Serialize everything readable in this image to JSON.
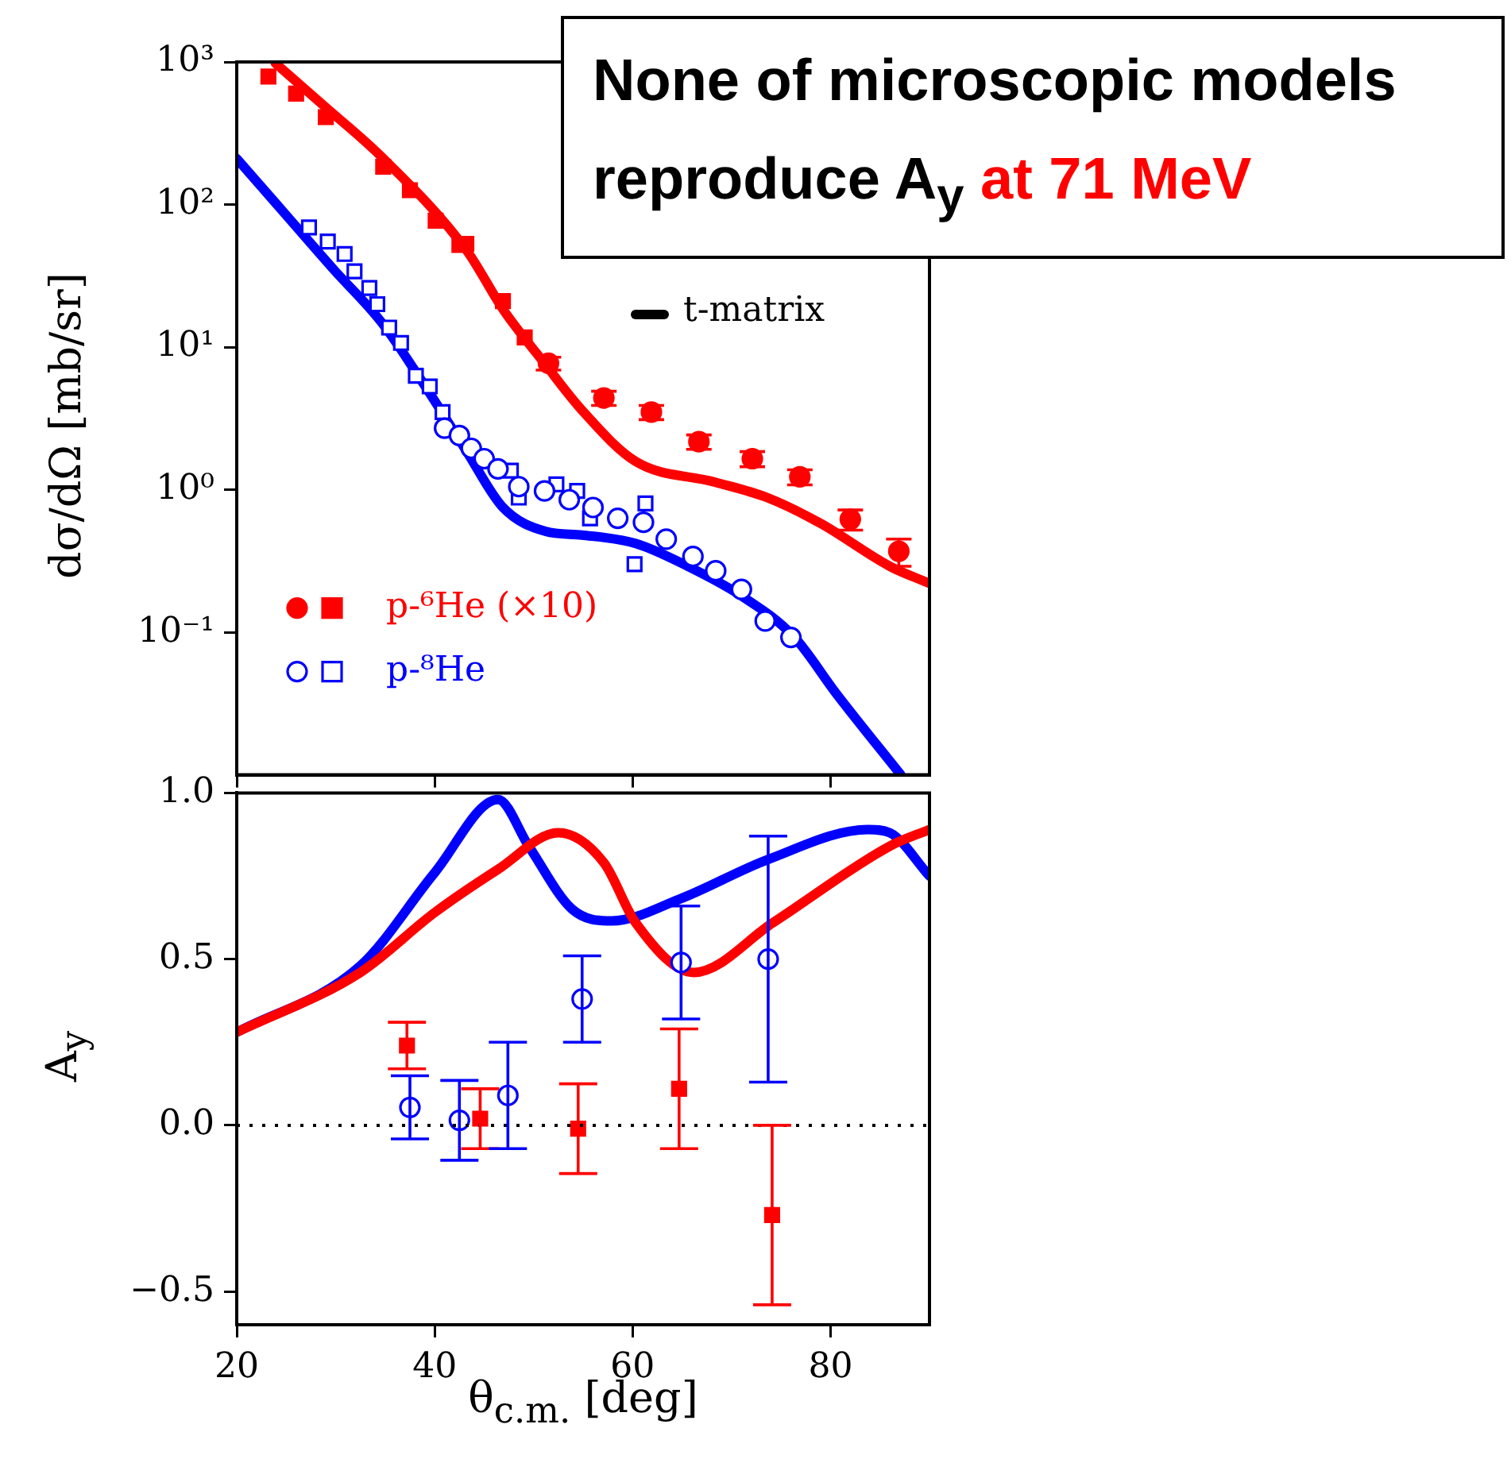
{
  "chart_data": [
    {
      "type": "scatter",
      "ylabel": "dσ/dΩ [mb/sr]",
      "log": "y",
      "xlim": [
        20,
        90
      ],
      "xticks": [
        {
          "value": 20,
          "label": null
        },
        {
          "value": 40,
          "label": null
        },
        {
          "value": 60,
          "label": null
        },
        {
          "value": 80,
          "label": null
        }
      ],
      "ylim": [
        0.01,
        1000
      ],
      "yticks": [
        {
          "value": 1000,
          "label": "10³"
        },
        {
          "value": 100,
          "label": "10²"
        },
        {
          "value": 10,
          "label": "10¹"
        },
        {
          "value": 1,
          "label": "10⁰"
        },
        {
          "value": 0.1,
          "label": "10⁻¹"
        }
      ],
      "tick_labels": "y",
      "grid": false,
      "legend": "bottom left",
      "annotations": [
        "None of microscopic models reproduce A$_{y}$",
        "at 71 MeV",
        "t-matrix"
      ],
      "series": [
        {
          "name": "p-⁶He (×10)",
          "type": "scatter",
          "marker": "circle",
          "color": "#ff0000",
          "x": [
            51.5,
            57.1,
            61.9,
            66.7,
            72.1,
            76.9,
            82.0,
            86.9
          ],
          "values": [
            7.7,
            4.4,
            3.5,
            2.17,
            1.65,
            1.23,
            0.62,
            0.37
          ],
          "errors": [
            0.8,
            0.5,
            0.4,
            0.25,
            0.2,
            0.15,
            0.1,
            0.08
          ]
        },
        {
          "type": "scatter",
          "marker": "square",
          "color": "#ff0000",
          "x": [
            23.2,
            26.0,
            29.0,
            34.8,
            37.5,
            40.1,
            42.5,
            43.2,
            46.9,
            49.1
          ],
          "values": [
            790,
            600,
            410,
            184,
            126,
            77,
            52,
            53,
            21,
            11.7
          ]
        },
        {
          "name": "p-⁸He",
          "type": "scatter",
          "marker": "circle",
          "color": "#0000ff",
          "x": [
            41.0,
            42.5,
            43.7,
            45.0,
            46.4,
            48.5,
            51.1,
            53.6,
            56.0,
            58.5,
            61.1,
            63.4,
            66.1,
            68.4,
            71.0,
            73.4,
            76.0
          ],
          "values": [
            2.7,
            2.4,
            1.95,
            1.65,
            1.4,
            1.05,
            0.98,
            0.85,
            0.75,
            0.63,
            0.59,
            0.45,
            0.34,
            0.27,
            0.2,
            0.12,
            0.092
          ]
        },
        {
          "type": "scatter",
          "marker": "square",
          "color": "#0000ff",
          "x": [
            27.3,
            29.2,
            30.9,
            31.9,
            33.4,
            34.2,
            35.4,
            36.6,
            38.1,
            39.5,
            40.8,
            47.7,
            48.5,
            52.3,
            54.4,
            55.7,
            60.2,
            61.3
          ],
          "values": [
            69,
            55,
            45,
            34,
            26,
            20,
            13.7,
            10.7,
            6.3,
            5.3,
            3.5,
            1.36,
            0.88,
            1.09,
            0.98,
            0.63,
            0.3,
            0.8
          ]
        },
        {
          "type": "line",
          "marker": "none",
          "color": "#ff0000",
          "x": [
            23.9,
            28.7,
            34.6,
            43.2,
            47.0,
            51.1,
            54.9,
            60.3,
            68.3,
            73.6,
            79.0,
            86.0,
            90.0
          ],
          "values": [
            980,
            500,
            217,
            48,
            18,
            7.7,
            3.6,
            1.58,
            1.13,
            0.88,
            0.58,
            0.29,
            0.22
          ]
        },
        {
          "type": "line",
          "marker": "none",
          "color": "#0000ff",
          "x": [
            20,
            24.4,
            29.8,
            34.6,
            38.9,
            43.2,
            46.9,
            51.2,
            54.9,
            60.3,
            65.6,
            71.0,
            76.3,
            80.6,
            87.1
          ],
          "values": [
            210,
            94,
            35,
            15,
            5.5,
            1.87,
            0.75,
            0.51,
            0.48,
            0.42,
            0.29,
            0.18,
            0.093,
            0.037,
            0.01
          ]
        }
      ]
    },
    {
      "type": "scatter",
      "xlabel": "θ$_{c.m.}$ [deg]",
      "ylabel": "A$_{y}$",
      "xlim": [
        20,
        90
      ],
      "xticks": [
        20,
        40,
        60,
        80
      ],
      "ylim": [
        -0.6,
        1.0
      ],
      "yticks": [
        {
          "value": -0.5,
          "label": "−0.5"
        },
        {
          "value": 0,
          "label": "0.0"
        },
        {
          "value": 0.5,
          "label": "0.5"
        },
        {
          "value": 1.0,
          "label": "1.0"
        }
      ],
      "grid": false,
      "ref_lines": [
        {
          "axis": "y",
          "value": 0,
          "color": "#000000",
          "line_style": "dotted"
        }
      ],
      "series": [
        {
          "type": "scatter",
          "marker": "square",
          "color": "#ff0000",
          "x": [
            37.2,
            44.6,
            54.5,
            64.7,
            74.1
          ],
          "values": [
            0.24,
            0.02,
            -0.01,
            0.11,
            -0.27
          ],
          "errors": [
            0.07,
            0.09,
            0.135,
            0.18,
            0.27
          ]
        },
        {
          "type": "scatter",
          "marker": "circle",
          "color": "#0000ff",
          "x": [
            37.5,
            42.5,
            47.4,
            54.9,
            64.9,
            73.7
          ],
          "values": [
            0.054,
            0.015,
            0.09,
            0.38,
            0.49,
            0.5
          ],
          "errors": [
            0.095,
            0.12,
            0.16,
            0.13,
            0.17,
            0.37
          ]
        },
        {
          "type": "line",
          "marker": "none",
          "color": "#ff0000",
          "x": [
            20,
            32.5,
            40,
            46.4,
            52.5,
            57.1,
            60.3,
            66.2,
            74.2,
            86,
            90
          ],
          "values": [
            0.28,
            0.46,
            0.64,
            0.77,
            0.88,
            0.79,
            0.61,
            0.46,
            0.61,
            0.84,
            0.89
          ]
        },
        {
          "type": "line",
          "marker": "none",
          "color": "#0000ff",
          "x": [
            20,
            32.5,
            40,
            46.4,
            49.5,
            53.9,
            57.9,
            64.7,
            73.7,
            83.8,
            86,
            90
          ],
          "values": [
            0.28,
            0.48,
            0.76,
            0.98,
            0.84,
            0.65,
            0.615,
            0.68,
            0.8,
            0.89,
            0.88,
            0.75
          ]
        }
      ]
    }
  ]
}
